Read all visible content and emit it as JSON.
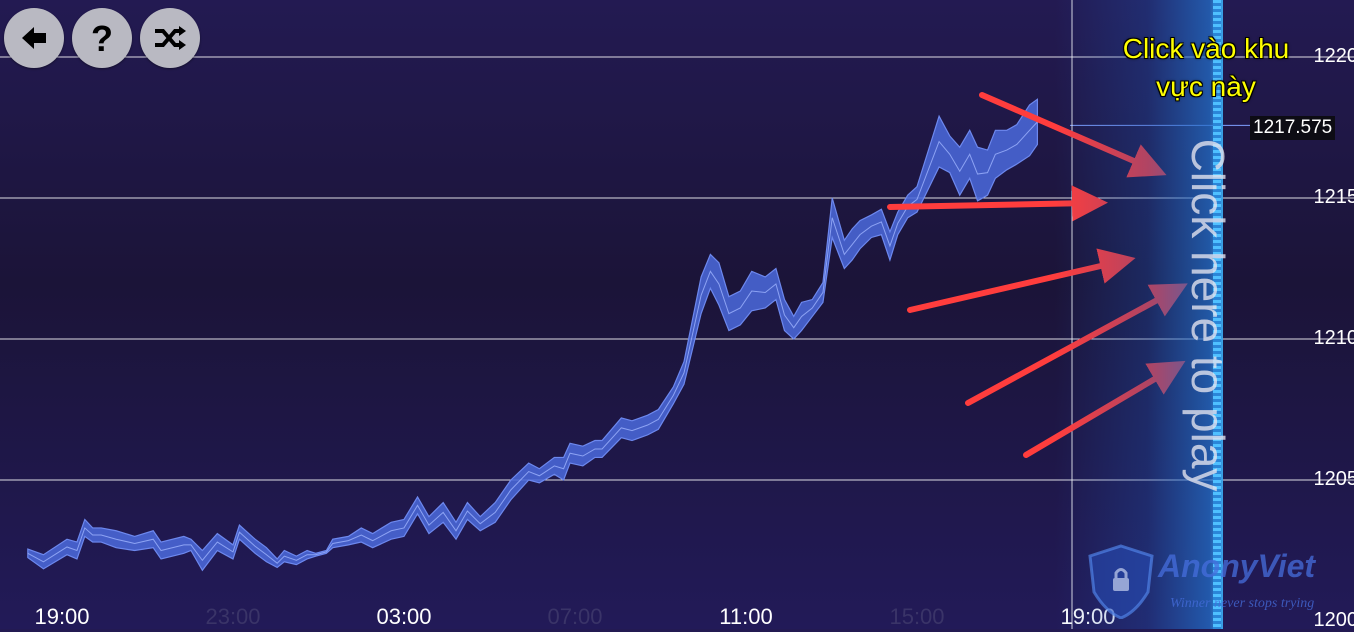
{
  "toolbar": {
    "buttons": [
      {
        "name": "back-button",
        "icon": "arrow-left-icon"
      },
      {
        "name": "help-button",
        "icon": "question-icon"
      },
      {
        "name": "shuffle-button",
        "icon": "shuffle-icon"
      }
    ]
  },
  "annotation": {
    "callout_line1": "Click vào khu",
    "callout_line2": "vực này",
    "callout_color": "#ffff00",
    "arrow_color": "#ff3d3d",
    "arrow_count": 5
  },
  "play_zone": {
    "label": "Click here to play"
  },
  "current_price": "1217.575",
  "watermark": {
    "name": "AnonyViet",
    "tagline": "Winner never stops trying"
  },
  "colors": {
    "background": "#1e1646",
    "series_band": "#4a68d8",
    "gridline": "#ffffff",
    "play_edge": "#4fc0ff"
  },
  "chart_data": {
    "type": "area",
    "y_tick_labels": [
      "1220",
      "1215",
      "1210",
      "1205",
      "1200"
    ],
    "y_ticks": [
      1220,
      1215,
      1210,
      1205,
      1200
    ],
    "ylim": [
      1200,
      1220
    ],
    "x_tick_labels": [
      "19:00",
      "23:00",
      "03:00",
      "07:00",
      "11:00",
      "15:00",
      "19:00"
    ],
    "grid": true,
    "current_price_line": 1217.575,
    "series": [
      {
        "values": [
          [
            1202.55,
            1202.25
          ],
          [
            1202.35,
            1201.85
          ],
          [
            1202.9,
            1202.35
          ],
          [
            1202.8,
            1202.2
          ],
          [
            1203.6,
            1203.0
          ],
          [
            1203.3,
            1202.8
          ],
          [
            1203.3,
            1202.8
          ],
          [
            1203.2,
            1202.6
          ],
          [
            1203.0,
            1202.5
          ],
          [
            1203.2,
            1202.6
          ],
          [
            1202.8,
            1202.2
          ],
          [
            1203.0,
            1202.4
          ],
          [
            1202.9,
            1202.5
          ],
          [
            1202.5,
            1201.8
          ],
          [
            1203.1,
            1202.5
          ],
          [
            1202.7,
            1202.2
          ],
          [
            1203.4,
            1202.9
          ],
          [
            1202.9,
            1202.4
          ],
          [
            1202.6,
            1202.1
          ],
          [
            1202.2,
            1201.9
          ],
          [
            1202.5,
            1202.1
          ],
          [
            1202.3,
            1202.0
          ],
          [
            1202.5,
            1202.2
          ],
          [
            1202.4,
            1202.3
          ],
          [
            1202.5,
            1202.4
          ],
          [
            1202.9,
            1202.6
          ],
          [
            1203.0,
            1202.7
          ],
          [
            1203.3,
            1202.8
          ],
          [
            1203.1,
            1202.6
          ],
          [
            1203.5,
            1202.9
          ],
          [
            1203.6,
            1203.0
          ],
          [
            1204.4,
            1203.8
          ],
          [
            1203.7,
            1203.1
          ],
          [
            1204.2,
            1203.5
          ],
          [
            1203.5,
            1202.9
          ],
          [
            1204.2,
            1203.6
          ],
          [
            1203.7,
            1203.2
          ],
          [
            1204.2,
            1203.5
          ],
          [
            1205.0,
            1204.3
          ],
          [
            1205.6,
            1205.0
          ],
          [
            1205.4,
            1204.9
          ],
          [
            1205.8,
            1205.2
          ],
          [
            1205.8,
            1205.0
          ],
          [
            1206.3,
            1205.6
          ],
          [
            1206.2,
            1205.5
          ],
          [
            1206.4,
            1205.8
          ],
          [
            1206.4,
            1205.8
          ],
          [
            1207.2,
            1206.5
          ],
          [
            1207.1,
            1206.4
          ],
          [
            1207.3,
            1206.6
          ],
          [
            1207.5,
            1206.8
          ],
          [
            1208.3,
            1207.7
          ],
          [
            1209.2,
            1208.4
          ],
          [
            1212.2,
            1210.9
          ],
          [
            1213.0,
            1211.8
          ],
          [
            1212.7,
            1211.2
          ],
          [
            1211.5,
            1210.3
          ],
          [
            1211.7,
            1210.5
          ],
          [
            1212.4,
            1211.0
          ],
          [
            1212.2,
            1211.1
          ],
          [
            1212.5,
            1211.4
          ],
          [
            1211.4,
            1210.3
          ],
          [
            1210.8,
            1210.0
          ],
          [
            1211.3,
            1210.3
          ],
          [
            1211.4,
            1210.8
          ],
          [
            1212.0,
            1211.3
          ],
          [
            1215.0,
            1213.6
          ],
          [
            1213.5,
            1212.5
          ],
          [
            1213.9,
            1212.8
          ],
          [
            1214.2,
            1213.2
          ],
          [
            1214.4,
            1213.6
          ],
          [
            1214.6,
            1213.7
          ],
          [
            1213.8,
            1212.8
          ],
          [
            1214.5,
            1213.7
          ],
          [
            1215.1,
            1214.3
          ],
          [
            1215.4,
            1214.5
          ],
          [
            1217.9,
            1216.1
          ],
          [
            1217.2,
            1215.9
          ],
          [
            1216.8,
            1215.1
          ],
          [
            1217.4,
            1215.7
          ],
          [
            1216.8,
            1214.9
          ],
          [
            1216.7,
            1215.1
          ],
          [
            1217.4,
            1215.7
          ],
          [
            1217.4,
            1216.0
          ],
          [
            1217.6,
            1216.2
          ],
          [
            1218.3,
            1216.5
          ],
          [
            1218.5,
            1216.9
          ]
        ],
        "x_positions": [
          "18:12",
          "18:34",
          "19:07",
          "19:21",
          "19:32",
          "19:43",
          "19:55",
          "20:16",
          "20:42",
          "21:08",
          "21:19",
          "21:51",
          "22:01",
          "22:17",
          "22:38",
          "23:00",
          "23:09",
          "23:31",
          "23:47",
          "00:02",
          "00:12",
          "00:29",
          "00:44",
          "00:56",
          "01:11",
          "01:20",
          "01:42",
          "02:00",
          "02:16",
          "02:42",
          "03:00",
          "03:19",
          "03:35",
          "03:55",
          "04:13",
          "04:29",
          "04:47",
          "05:08",
          "05:30",
          "05:55",
          "06:10",
          "06:31",
          "06:44",
          "06:53",
          "07:11",
          "07:28",
          "07:38",
          "08:05",
          "08:20",
          "08:42",
          "08:57",
          "09:18",
          "09:33",
          "09:57",
          "10:10",
          "10:22",
          "10:36",
          "10:52",
          "11:08",
          "11:27",
          "11:42",
          "11:54",
          "12:07",
          "12:18",
          "12:33",
          "12:48",
          "13:01",
          "13:18",
          "13:29",
          "13:40",
          "13:56",
          "14:10",
          "14:22",
          "14:33",
          "14:47",
          "15:00",
          "15:31",
          "15:46",
          "16:00",
          "16:14",
          "16:25",
          "16:39",
          "16:50",
          "17:06",
          "17:20",
          "17:38",
          "17:49"
        ]
      }
    ]
  }
}
